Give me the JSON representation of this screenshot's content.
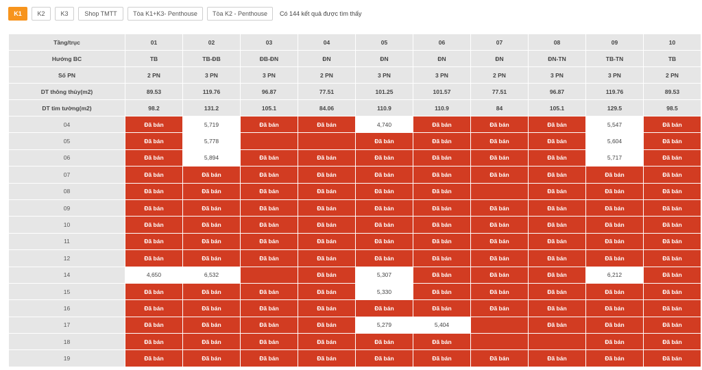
{
  "tabs": [
    {
      "label": "K1",
      "active": true
    },
    {
      "label": "K2",
      "active": false
    },
    {
      "label": "K3",
      "active": false
    },
    {
      "label": "Shop TMTT",
      "active": false
    },
    {
      "label": "Tòa K1+K3- Penthouse",
      "active": false
    },
    {
      "label": "Tòa K2 - Penthouse",
      "active": false
    }
  ],
  "result_text": "Có 144 kết quả được tìm thấy",
  "sold_label": "Đã bán",
  "colors": {
    "sold": "#d23c22",
    "accent": "#f7941d",
    "header_bg": "#e6e6e6"
  },
  "header_rows": [
    {
      "label": "Tầng/trục",
      "cells": [
        "01",
        "02",
        "03",
        "04",
        "05",
        "06",
        "07",
        "08",
        "09",
        "10"
      ]
    },
    {
      "label": "Hướng BC",
      "cells": [
        "TB",
        "TB-ĐB",
        "ĐB-ĐN",
        "ĐN",
        "ĐN",
        "ĐN",
        "ĐN",
        "ĐN-TN",
        "TB-TN",
        "TB"
      ]
    },
    {
      "label": "Số PN",
      "cells": [
        "2 PN",
        "3 PN",
        "3 PN",
        "2 PN",
        "3 PN",
        "3 PN",
        "2 PN",
        "3 PN",
        "3 PN",
        "2 PN"
      ]
    },
    {
      "label": "DT thông thủy(m2)",
      "cells": [
        "89.53",
        "119.76",
        "96.87",
        "77.51",
        "101.25",
        "101.57",
        "77.51",
        "96.87",
        "119.76",
        "89.53"
      ]
    },
    {
      "label": "DT tim tường(m2)",
      "cells": [
        "98.2",
        "131.2",
        "105.1",
        "84.06",
        "110.9",
        "110.9",
        "84",
        "105.1",
        "129.5",
        "98.5"
      ]
    }
  ],
  "floors": [
    {
      "floor": "04",
      "units": [
        "S",
        "5,719",
        "S",
        "S",
        "4,740",
        "S",
        "S",
        "S",
        "5,547",
        "S"
      ]
    },
    {
      "floor": "05",
      "units": [
        "S",
        "5,778",
        "",
        "",
        "S",
        "S",
        "S",
        "S",
        "5,604",
        "S"
      ]
    },
    {
      "floor": "06",
      "units": [
        "S",
        "5,894",
        "S",
        "S",
        "S",
        "S",
        "S",
        "S",
        "5,717",
        "S"
      ]
    },
    {
      "floor": "07",
      "units": [
        "S",
        "S",
        "S",
        "S",
        "S",
        "S",
        "S",
        "S",
        "S",
        "S"
      ]
    },
    {
      "floor": "08",
      "units": [
        "S",
        "S",
        "S",
        "S",
        "S",
        "S",
        "",
        "S",
        "S",
        "S"
      ]
    },
    {
      "floor": "09",
      "units": [
        "S",
        "S",
        "S",
        "S",
        "S",
        "S",
        "S",
        "S",
        "S",
        "S"
      ]
    },
    {
      "floor": "10",
      "units": [
        "S",
        "S",
        "S",
        "S",
        "S",
        "S",
        "S",
        "S",
        "S",
        "S"
      ]
    },
    {
      "floor": "11",
      "units": [
        "S",
        "S",
        "S",
        "S",
        "S",
        "S",
        "S",
        "S",
        "S",
        "S"
      ]
    },
    {
      "floor": "12",
      "units": [
        "S",
        "S",
        "S",
        "S",
        "S",
        "S",
        "S",
        "S",
        "S",
        "S"
      ]
    },
    {
      "floor": "14",
      "units": [
        "4,650",
        "6,532",
        "",
        "S",
        "5,307",
        "S",
        "S",
        "S",
        "6,212",
        "S"
      ]
    },
    {
      "floor": "15",
      "units": [
        "S",
        "S",
        "S",
        "S",
        "5,330",
        "S",
        "S",
        "S",
        "S",
        "S"
      ]
    },
    {
      "floor": "16",
      "units": [
        "S",
        "S",
        "S",
        "S",
        "S",
        "S",
        "S",
        "S",
        "S",
        "S"
      ]
    },
    {
      "floor": "17",
      "units": [
        "S",
        "S",
        "S",
        "S",
        "5,279",
        "5,404",
        "",
        "S",
        "S",
        "S"
      ]
    },
    {
      "floor": "18",
      "units": [
        "S",
        "S",
        "S",
        "S",
        "S",
        "S",
        "",
        "",
        "S",
        "S"
      ]
    },
    {
      "floor": "19",
      "units": [
        "S",
        "S",
        "S",
        "S",
        "S",
        "S",
        "S",
        "S",
        "S",
        "S"
      ]
    }
  ]
}
